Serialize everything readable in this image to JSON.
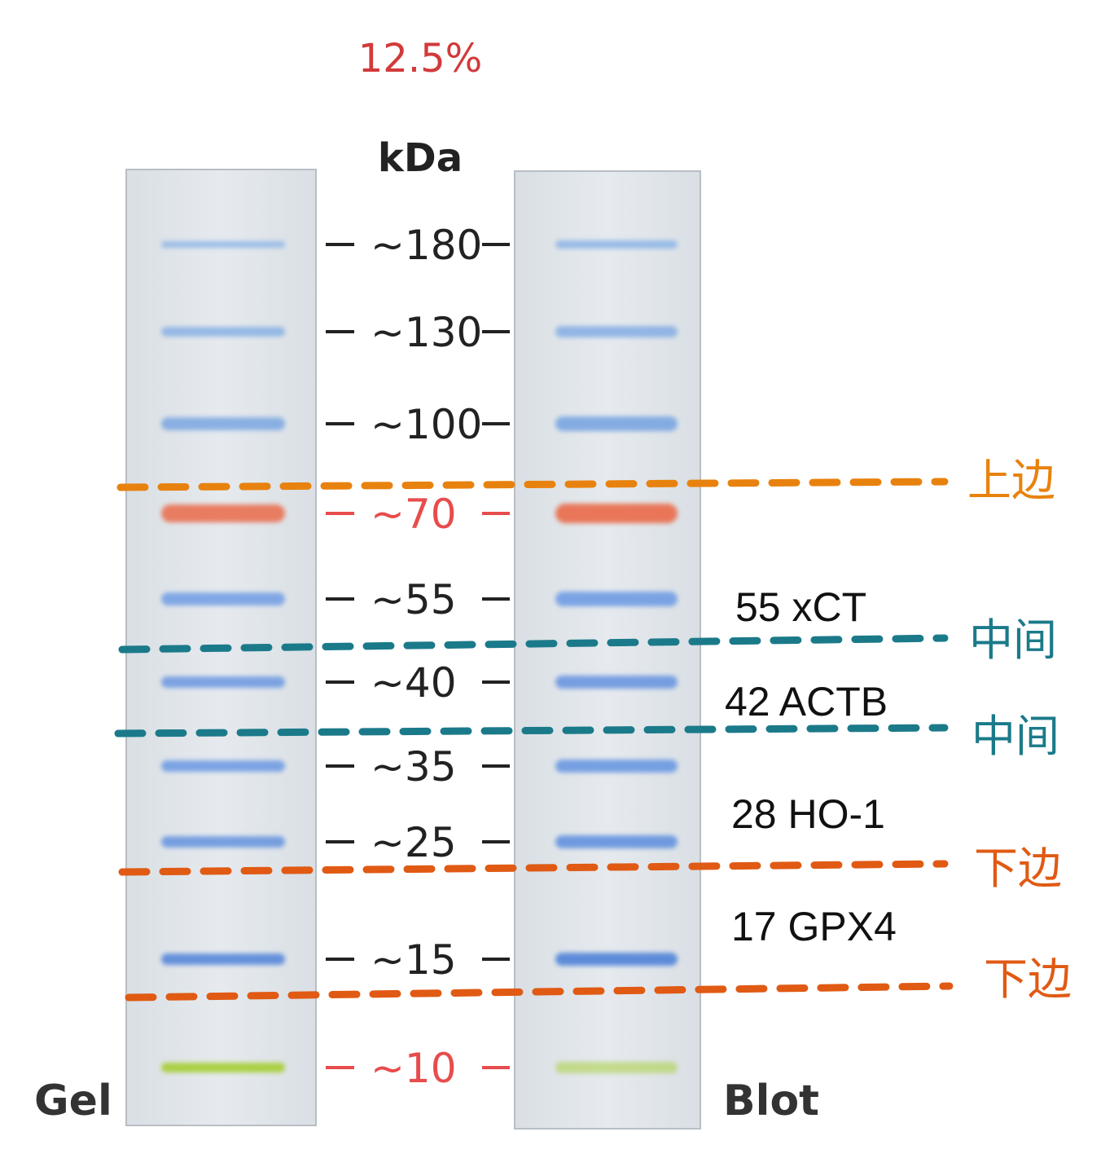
{
  "header": {
    "gel_percent": "12.5%",
    "unit": "kDa"
  },
  "lanes": {
    "gel_label": "Gel",
    "blot_label": "Blot"
  },
  "markers": [
    {
      "label": "~180",
      "kda": 180,
      "color": "#222222",
      "band_color": "#8fb6e6"
    },
    {
      "label": "~130",
      "kda": 130,
      "color": "#222222",
      "band_color": "#88b0e4"
    },
    {
      "label": "~100",
      "kda": 100,
      "color": "#222222",
      "band_color": "#7aa6e2"
    },
    {
      "label": "~70",
      "kda": 70,
      "color": "#e84c4c",
      "band_color": "#ea6a4a"
    },
    {
      "label": "~55",
      "kda": 55,
      "color": "#222222",
      "band_color": "#6f9ce4"
    },
    {
      "label": "~40",
      "kda": 40,
      "color": "#222222",
      "band_color": "#6a96e0"
    },
    {
      "label": "~35",
      "kda": 35,
      "color": "#222222",
      "band_color": "#6a98e2"
    },
    {
      "label": "~25",
      "kda": 25,
      "color": "#222222",
      "band_color": "#6392de"
    },
    {
      "label": "~15",
      "kda": 15,
      "color": "#222222",
      "band_color": "#4f82d8"
    },
    {
      "label": "~10",
      "kda": 10,
      "color": "#e84c4c",
      "band_color": "#a8cf3a"
    }
  ],
  "cut_lines": [
    {
      "label": "上边",
      "color": "#e8820e"
    },
    {
      "label": "中间",
      "color": "#1b7a8a"
    },
    {
      "label": "中间",
      "color": "#1b7a8a"
    },
    {
      "label": "下边",
      "color": "#e05a14"
    },
    {
      "label": "下边",
      "color": "#e05a14"
    }
  ],
  "targets": [
    {
      "label": "55 xCT"
    },
    {
      "label": "42 ACTB"
    },
    {
      "label": "28 HO-1"
    },
    {
      "label": "17 GPX4"
    }
  ]
}
